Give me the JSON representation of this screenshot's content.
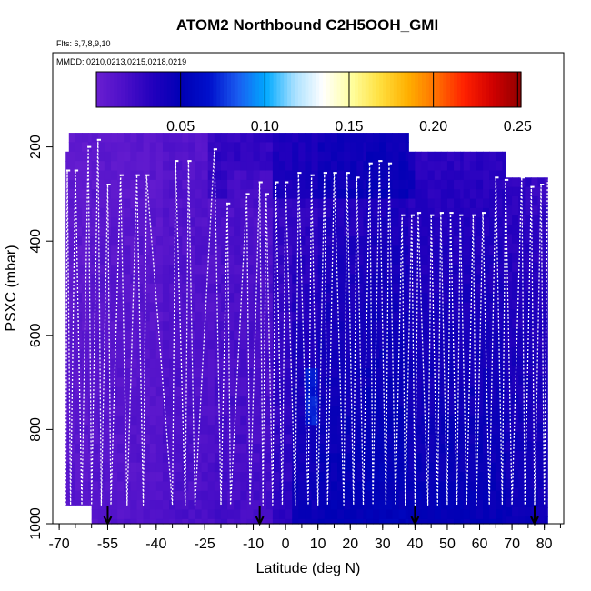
{
  "chart_data": {
    "type": "heatmap",
    "title": "ATOM2 Northbound C2H5OOH_GMI",
    "subtitle_flights": "Flts: 6,7,8,9,10",
    "subtitle_dates": "MMDD: 0210,0213,0215,0218,0219",
    "xlabel": "Latitude (deg N)",
    "ylabel": "PSXC (mbar)",
    "xlim": [
      -72,
      86
    ],
    "ylim": [
      1000,
      0
    ],
    "x_ticks": [
      -70,
      -55,
      -40,
      -25,
      -10,
      0,
      10,
      20,
      30,
      40,
      50,
      60,
      70,
      80
    ],
    "x_tick_labels": [
      "-70",
      "-55",
      "-40",
      "-25",
      "-10",
      "0",
      "10",
      "20",
      "30",
      "40",
      "50",
      "60",
      "70",
      "80"
    ],
    "y_ticks": [
      200,
      400,
      600,
      800,
      1000
    ],
    "y_tick_labels": [
      "200",
      "400",
      "600",
      "800",
      "1000"
    ],
    "colorbar": {
      "range": [
        0,
        0.252
      ],
      "ticks": [
        0.05,
        0.1,
        0.15,
        0.2,
        0.25
      ],
      "tick_labels": [
        "0.05",
        "0.10",
        "0.15",
        "0.20",
        "0.25"
      ],
      "colors": [
        "#6a1fd1",
        "#4b0fc8",
        "#2200bd",
        "#0000b5",
        "#0010cc",
        "#1a5cf0",
        "#00aaff",
        "#a9e0ff",
        "#ffffff",
        "#ffffa0",
        "#ffe040",
        "#ffb000",
        "#ff7000",
        "#ff2000",
        "#d00000",
        "#900000"
      ]
    },
    "curtain_columns": [
      {
        "x0": -68,
        "x1": -67,
        "top": 210,
        "bottom": 960,
        "base": 0.005
      },
      {
        "x0": -67,
        "x1": -60,
        "top": 170,
        "bottom": 960,
        "base": 0.006
      },
      {
        "x0": -60,
        "x1": -38,
        "top": 170,
        "bottom": 1000,
        "base": 0.008
      },
      {
        "x0": -38,
        "x1": -22,
        "top": 170,
        "bottom": 1000,
        "base": 0.012
      },
      {
        "x0": -22,
        "x1": -4,
        "top": 170,
        "bottom": 1000,
        "base": 0.015
      },
      {
        "x0": -4,
        "x1": 10,
        "top": 170,
        "bottom": 1000,
        "base": 0.025
      },
      {
        "x0": 10,
        "x1": 25,
        "top": 170,
        "bottom": 1000,
        "base": 0.03
      },
      {
        "x0": 25,
        "x1": 38,
        "top": 170,
        "bottom": 1000,
        "base": 0.033
      },
      {
        "x0": 38,
        "x1": 55,
        "top": 210,
        "bottom": 1000,
        "base": 0.03
      },
      {
        "x0": 55,
        "x1": 68,
        "top": 210,
        "bottom": 1000,
        "base": 0.03
      },
      {
        "x0": 68,
        "x1": 76,
        "top": 265,
        "bottom": 1000,
        "base": 0.028
      },
      {
        "x0": 76,
        "x1": 81,
        "top": 265,
        "bottom": 1000,
        "base": 0.026
      }
    ],
    "highlights": [
      {
        "x0": 5,
        "x1": 10,
        "p0": 670,
        "p1": 780,
        "value": 0.07
      },
      {
        "x0": 30,
        "x1": 60,
        "p0": 900,
        "p1": 960,
        "value": 0.05
      },
      {
        "x0": -18,
        "x1": -4,
        "p0": 240,
        "p1": 330,
        "value": 0.02
      }
    ],
    "flight_profile": {
      "lat": [
        -68,
        -67.5,
        -66.5,
        -65,
        -63,
        -61,
        -60,
        -58,
        -57,
        -55,
        -54,
        -51,
        -49,
        -46,
        -44,
        -43,
        -35,
        -34,
        -31,
        -30,
        -28,
        -22,
        -20,
        -18,
        -17,
        -12,
        -11,
        -8,
        -7,
        -6,
        -4,
        -3,
        -1,
        0,
        3,
        4,
        7,
        8,
        10,
        12,
        13,
        15,
        18,
        19,
        21,
        22,
        24,
        26,
        27,
        29,
        31,
        32,
        34,
        36,
        37,
        39,
        40,
        41,
        44,
        45,
        47,
        48,
        50,
        51,
        53,
        54,
        56,
        58,
        59,
        61,
        63,
        65,
        67,
        68,
        70,
        73,
        74,
        76,
        77,
        79,
        80,
        81
      ],
      "pressure": [
        960,
        250,
        960,
        250,
        960,
        200,
        960,
        185,
        960,
        280,
        960,
        260,
        960,
        260,
        960,
        260,
        960,
        230,
        960,
        230,
        960,
        205,
        960,
        320,
        960,
        300,
        960,
        275,
        960,
        300,
        960,
        275,
        960,
        275,
        960,
        255,
        960,
        260,
        960,
        255,
        960,
        255,
        960,
        255,
        960,
        265,
        960,
        235,
        960,
        230,
        960,
        235,
        960,
        345,
        960,
        345,
        960,
        340,
        960,
        345,
        960,
        340,
        960,
        340,
        960,
        345,
        960,
        345,
        960,
        340,
        960,
        265,
        960,
        270,
        960,
        265,
        960,
        285,
        960,
        280,
        960,
        270
      ],
      "dotted_segment_from_index": 25
    },
    "arrows_lat": [
      -55,
      -8,
      40,
      77
    ]
  }
}
